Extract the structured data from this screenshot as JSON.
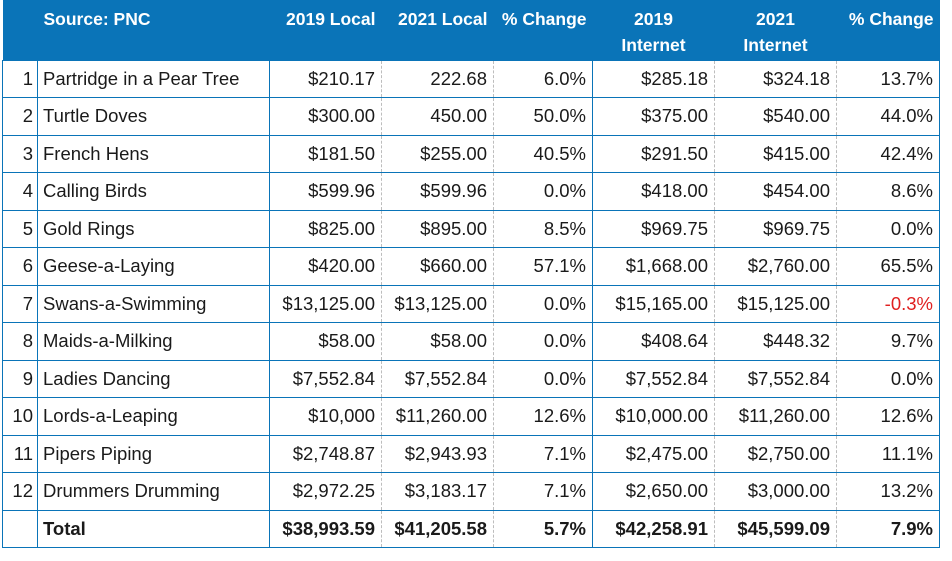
{
  "header": {
    "source": "Source: PNC",
    "local_2019": "2019 Local",
    "local_2021": "2021 Local",
    "local_change": "% Change",
    "internet_2019_a": "2019",
    "internet_2019_b": "Internet",
    "internet_2021_a": "2021",
    "internet_2021_b": "Internet",
    "internet_change": "% Change"
  },
  "rows": [
    {
      "idx": "1",
      "item": "Partridge in a Pear Tree",
      "l2019": "$210.17",
      "l2021": "222.68",
      "lchg": "6.0%",
      "i2019": "$285.18",
      "i2021": "$324.18",
      "ichg": "13.7%"
    },
    {
      "idx": "2",
      "item": "Turtle Doves",
      "l2019": "$300.00",
      "l2021": "450.00",
      "lchg": "50.0%",
      "i2019": "$375.00",
      "i2021": "$540.00",
      "ichg": "44.0%"
    },
    {
      "idx": "3",
      "item": "French Hens",
      "l2019": "$181.50",
      "l2021": "$255.00",
      "lchg": "40.5%",
      "i2019": "$291.50",
      "i2021": "$415.00",
      "ichg": "42.4%"
    },
    {
      "idx": "4",
      "item": "Calling Birds",
      "l2019": "$599.96",
      "l2021": "$599.96",
      "lchg": "0.0%",
      "i2019": "$418.00",
      "i2021": "$454.00",
      "ichg": "8.6%"
    },
    {
      "idx": "5",
      "item": "Gold Rings",
      "l2019": "$825.00",
      "l2021": "$895.00",
      "lchg": "8.5%",
      "i2019": "$969.75",
      "i2021": "$969.75",
      "ichg": "0.0%"
    },
    {
      "idx": "6",
      "item": "Geese-a-Laying",
      "l2019": "$420.00",
      "l2021": "$660.00",
      "lchg": "57.1%",
      "i2019": "$1,668.00",
      "i2021": "$2,760.00",
      "ichg": "65.5%"
    },
    {
      "idx": "7",
      "item": "Swans-a-Swimming",
      "l2019": "$13,125.00",
      "l2021": "$13,125.00",
      "lchg": "0.0%",
      "i2019": "$15,165.00",
      "i2021": "$15,125.00",
      "ichg": "-0.3%"
    },
    {
      "idx": "8",
      "item": "Maids-a-Milking",
      "l2019": "$58.00",
      "l2021": "$58.00",
      "lchg": "0.0%",
      "i2019": "$408.64",
      "i2021": "$448.32",
      "ichg": "9.7%"
    },
    {
      "idx": "9",
      "item": "Ladies Dancing",
      "l2019": "$7,552.84",
      "l2021": "$7,552.84",
      "lchg": "0.0%",
      "i2019": "$7,552.84",
      "i2021": "$7,552.84",
      "ichg": "0.0%"
    },
    {
      "idx": "10",
      "item": "Lords-a-Leaping",
      "l2019": "$10,000",
      "l2021": "$11,260.00",
      "lchg": "12.6%",
      "i2019": "$10,000.00",
      "i2021": "$11,260.00",
      "ichg": "12.6%"
    },
    {
      "idx": "11",
      "item": "Pipers Piping",
      "l2019": "$2,748.87",
      "l2021": "$2,943.93",
      "lchg": "7.1%",
      "i2019": "$2,475.00",
      "i2021": "$2,750.00",
      "ichg": "11.1%"
    },
    {
      "idx": "12",
      "item": "Drummers Drumming",
      "l2019": "$2,972.25",
      "l2021": "$3,183.17",
      "lchg": "7.1%",
      "i2019": "$2,650.00",
      "i2021": "$3,000.00",
      "ichg": "13.2%"
    }
  ],
  "total": {
    "idx": "",
    "item": "Total",
    "l2019": "$38,993.59",
    "l2021": "$41,205.58",
    "lchg": "5.7%",
    "i2019": "$42,258.91",
    "i2021": "$45,599.09",
    "ichg": "7.9%"
  },
  "colors": {
    "header_bg": "#0a74b8",
    "negative": "#e02020"
  }
}
